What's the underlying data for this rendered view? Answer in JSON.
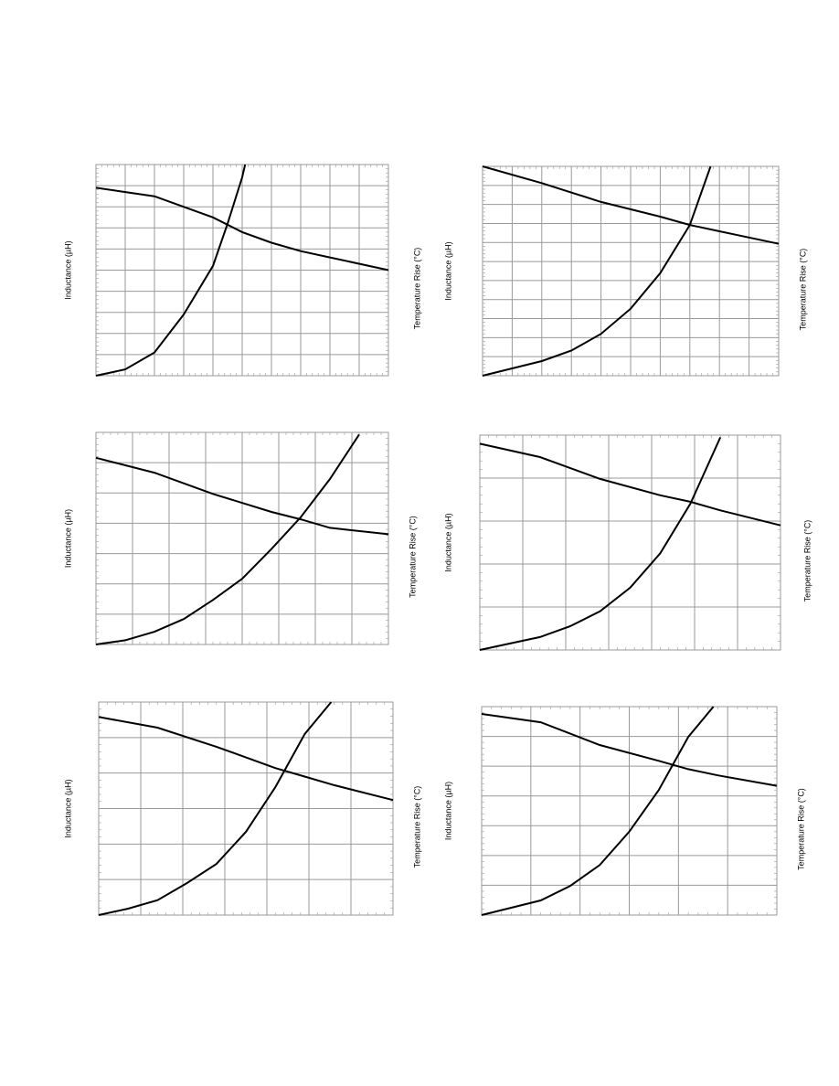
{
  "chart_data": [
    {
      "type": "line",
      "y_label": "Inductance (µH)",
      "y2_label": "Temperature Rise (°C)",
      "xlim": [
        0,
        10
      ],
      "ylim": [
        0,
        10
      ],
      "grid": true,
      "color": "#000000",
      "series": [
        {
          "x": [
            0,
            2,
            4,
            5,
            6,
            7,
            8,
            10
          ],
          "values": [
            8.9,
            8.5,
            7.5,
            6.8,
            6.3,
            5.9,
            5.6,
            5.0
          ]
        },
        {
          "x": [
            0,
            1,
            2,
            3,
            4,
            4.5,
            5,
            5.1
          ],
          "values": [
            0,
            0.3,
            1.1,
            2.9,
            5.2,
            7.2,
            9.4,
            10
          ]
        }
      ]
    },
    {
      "type": "line",
      "y_label": "Inductance (µH)",
      "y2_label": "Temperature Rise (°C)",
      "xlim": [
        0,
        10
      ],
      "ylim": [
        0,
        10
      ],
      "grid": true,
      "color": "#000000",
      "series": [
        {
          "x": [
            0,
            2,
            4,
            6,
            7,
            8,
            10
          ],
          "values": [
            10,
            9.2,
            8.3,
            7.6,
            7.2,
            6.9,
            6.3
          ]
        },
        {
          "x": [
            0,
            2,
            3,
            4,
            5,
            6,
            7,
            7.7
          ],
          "values": [
            0,
            0.7,
            1.2,
            2.0,
            3.2,
            4.9,
            7.2,
            10
          ]
        }
      ]
    },
    {
      "type": "line",
      "y_label": "Inductance (µH)",
      "y2_label": "Temperature Rise (°C)",
      "xlim": [
        0,
        10
      ],
      "ylim": [
        0,
        10
      ],
      "grid": true,
      "color": "#000000",
      "series": [
        {
          "x": [
            0,
            2,
            4,
            6,
            7,
            8,
            10
          ],
          "values": [
            8.8,
            8.1,
            7.1,
            6.25,
            5.9,
            5.5,
            5.2
          ]
        },
        {
          "x": [
            0,
            1,
            2,
            3,
            4,
            5,
            6,
            7,
            8,
            9
          ],
          "values": [
            0,
            0.2,
            0.6,
            1.2,
            2.1,
            3.1,
            4.5,
            6.0,
            7.8,
            9.9
          ]
        }
      ]
    },
    {
      "type": "line",
      "y_label": "Inductance (µH)",
      "y2_label": "Temperature Rise (°C)",
      "xlim": [
        0,
        10
      ],
      "ylim": [
        0,
        10
      ],
      "grid": true,
      "color": "#000000",
      "series": [
        {
          "x": [
            0,
            2,
            4,
            6,
            7,
            8,
            10
          ],
          "values": [
            9.6,
            8.98,
            7.96,
            7.2,
            6.9,
            6.5,
            5.8
          ]
        },
        {
          "x": [
            0,
            2,
            3,
            4,
            5,
            6,
            7,
            8
          ],
          "values": [
            0,
            0.6,
            1.1,
            1.8,
            2.9,
            4.5,
            6.8,
            9.9
          ]
        }
      ]
    },
    {
      "type": "line",
      "y_label": "Inductance (µH)",
      "y2_label": "Temperature Rise (°C)",
      "xlim": [
        0,
        10
      ],
      "ylim": [
        0,
        10
      ],
      "grid": true,
      "color": "#000000",
      "series": [
        {
          "x": [
            0,
            2,
            4,
            6,
            7,
            8,
            10
          ],
          "values": [
            9.3,
            8.8,
            7.9,
            6.9,
            6.5,
            6.1,
            5.4
          ]
        },
        {
          "x": [
            0,
            1,
            2,
            3,
            4,
            5,
            6,
            7,
            7.9
          ],
          "values": [
            0,
            0.3,
            0.7,
            1.5,
            2.4,
            3.9,
            6.0,
            8.5,
            10
          ]
        }
      ]
    },
    {
      "type": "line",
      "y_label": "Inductance (µH)",
      "y2_label": "Temperature Rise (°C)",
      "xlim": [
        0,
        10
      ],
      "ylim": [
        0,
        10
      ],
      "grid": true,
      "color": "#000000",
      "series": [
        {
          "x": [
            0,
            2,
            4,
            6,
            7,
            8,
            10
          ],
          "values": [
            9.65,
            9.25,
            8.16,
            7.4,
            7.0,
            6.7,
            6.2
          ]
        },
        {
          "x": [
            0,
            1,
            2,
            3,
            4,
            5,
            6,
            7,
            7.85
          ],
          "values": [
            0,
            0.35,
            0.7,
            1.4,
            2.4,
            4.0,
            6.0,
            8.55,
            10
          ]
        }
      ]
    }
  ]
}
